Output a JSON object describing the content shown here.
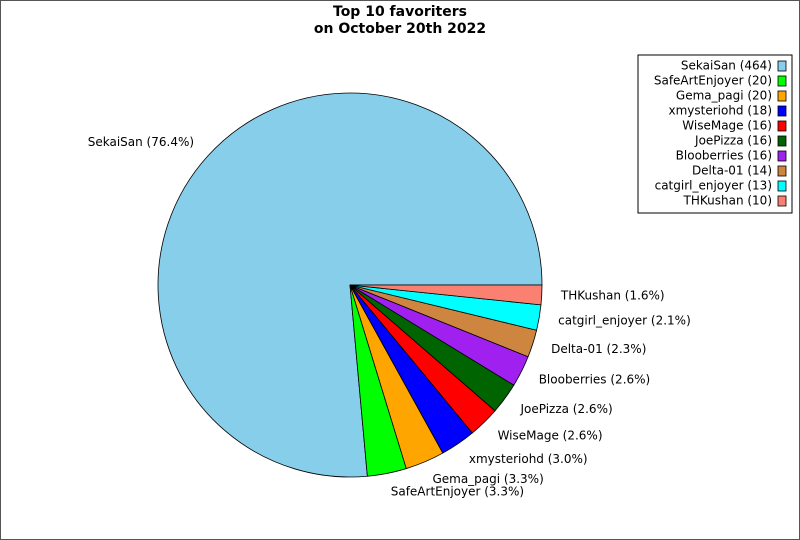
{
  "chart_data": {
    "type": "pie",
    "title": [
      "Top 10 favoriters",
      "on October 20th 2022"
    ],
    "values": [
      464,
      20,
      20,
      18,
      16,
      16,
      16,
      14,
      13,
      10
    ],
    "value_labels": [
      "SekaiSan (76.4%)",
      "SafeArtEnjoyer (3.3%)",
      "Gema_pagi (3.3%)",
      "xmysteriohd (3.0%)",
      "WiseMage (2.6%)",
      "JoePizza (2.6%)",
      "Blooberries (2.6%)",
      "Delta-01 (2.3%)",
      "catgirl_enjoyer (2.1%)",
      "THKushan (1.6%)"
    ],
    "legend_labels": [
      "SekaiSan (464)",
      "SafeArtEnjoyer (20)",
      "Gema_pagi (20)",
      "xmysteriohd (18)",
      "WiseMage (16)",
      "JoePizza (16)",
      "Blooberries (16)",
      "Delta-01 (14)",
      "catgirl_enjoyer (13)",
      "THKushan (10)"
    ],
    "colors": [
      "#87ceeb",
      "#00ff00",
      "#ffa500",
      "#0000ff",
      "#ff0000",
      "#006400",
      "#a020f0",
      "#cd853f",
      "#00ffff",
      "#fa8072"
    ],
    "legend": "upper right"
  }
}
